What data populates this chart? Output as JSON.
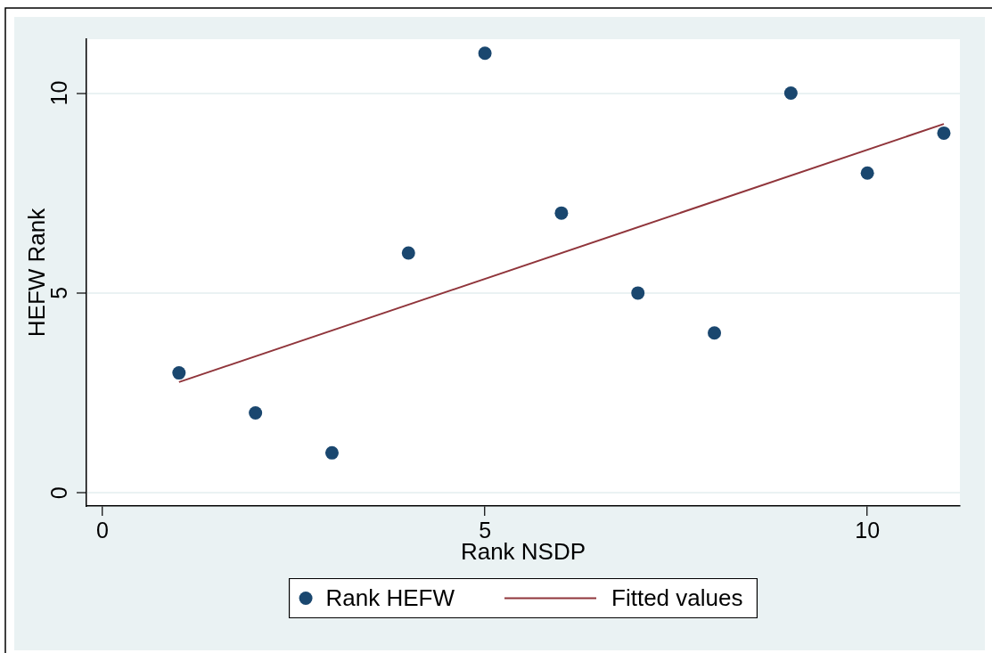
{
  "chart_data": {
    "type": "scatter",
    "xlabel": "Rank NSDP",
    "ylabel": "HEFW Rank",
    "xlim": [
      -0.21,
      11.21
    ],
    "ylim": [
      -0.33,
      11.35
    ],
    "xticks": [
      0,
      5,
      10
    ],
    "yticks": [
      0,
      5,
      10
    ],
    "grid": "y",
    "legend": "bottom",
    "marker": "circle",
    "series": [
      {
        "name": "Rank HEFW",
        "type": "scatter",
        "color": "#1a476f",
        "x": [
          1,
          2,
          3,
          4,
          5,
          6,
          7,
          8,
          9,
          10,
          11
        ],
        "values": [
          3,
          2,
          1,
          6,
          11,
          7,
          5,
          4,
          10,
          8,
          9
        ]
      },
      {
        "name": "Fitted values",
        "type": "line",
        "color": "#90353b",
        "marker": "none",
        "x": [
          1,
          11
        ],
        "values": [
          2.77,
          9.23
        ]
      }
    ]
  }
}
